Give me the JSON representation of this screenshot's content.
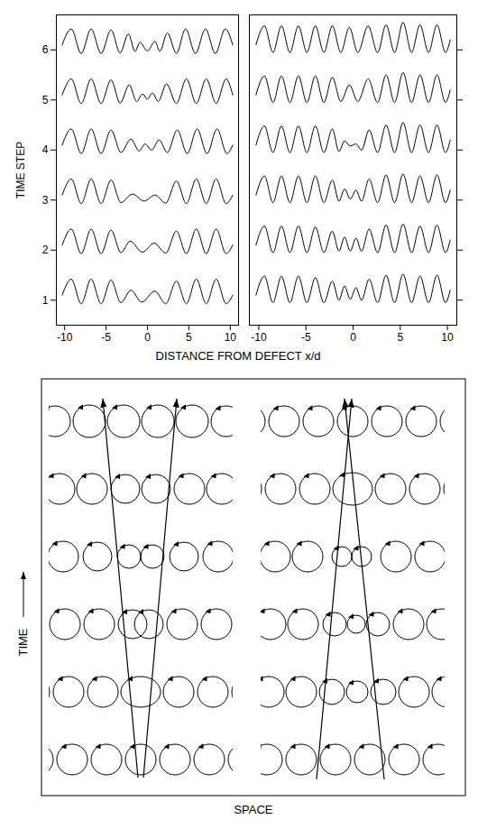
{
  "chart_data": {
    "type": "line",
    "color": "#000000",
    "xlabel": "DISTANCE FROM DEFECT x/d",
    "ylabel": "TIME STEP",
    "ylim": [
      0.5,
      6.7
    ],
    "yticks": [
      1,
      2,
      3,
      4,
      5,
      6
    ],
    "panels": [
      {
        "xlim": [
          -11,
          11
        ],
        "xticks": [
          -10,
          -5,
          0,
          5,
          10
        ],
        "series": [
          {
            "x": [
              -10.3,
              -9.2,
              -8.0,
              -6.8,
              -5.6,
              -4.4,
              -3.2,
              -2.0,
              -0.7,
              0.9,
              2.2,
              3.5,
              4.7,
              5.9,
              7.1,
              8.3,
              9.5,
              10.3
            ],
            "values": [
              1.1,
              1.42,
              0.93,
              1.42,
              0.93,
              1.4,
              0.95,
              1.2,
              0.96,
              1.18,
              0.93,
              1.38,
              0.93,
              1.42,
              0.93,
              1.42,
              0.93,
              1.1
            ]
          },
          {
            "x": [
              -10.3,
              -9.2,
              -8.0,
              -6.8,
              -5.6,
              -4.4,
              -3.2,
              -2.1,
              -0.6,
              0.8,
              2.2,
              3.5,
              4.7,
              5.9,
              7.1,
              8.3,
              9.5,
              10.3
            ],
            "values": [
              2.1,
              2.42,
              1.93,
              2.42,
              1.93,
              2.4,
              1.95,
              2.18,
              1.96,
              2.14,
              1.94,
              2.38,
              1.93,
              2.42,
              1.93,
              2.42,
              1.93,
              2.1
            ]
          },
          {
            "x": [
              -10.3,
              -9.2,
              -8.0,
              -6.8,
              -5.6,
              -4.4,
              -3.2,
              -1.8,
              -0.4,
              0.9,
              2.2,
              3.5,
              4.7,
              5.9,
              7.1,
              8.3,
              9.5,
              10.3
            ],
            "values": [
              3.1,
              3.42,
              2.93,
              3.42,
              2.93,
              3.4,
              2.95,
              3.12,
              2.98,
              3.1,
              2.94,
              3.38,
              2.93,
              3.42,
              2.93,
              3.42,
              2.93,
              3.1
            ]
          },
          {
            "x": [
              -10.3,
              -9.2,
              -8.0,
              -6.8,
              -5.6,
              -4.4,
              -3.2,
              -2.0,
              -1.0,
              -0.3,
              0.5,
              1.4,
              2.4,
              3.6,
              4.8,
              6.0,
              7.2,
              8.4,
              9.6,
              10.3
            ],
            "values": [
              4.1,
              4.42,
              3.93,
              4.42,
              3.93,
              4.4,
              3.95,
              4.22,
              3.98,
              4.12,
              4.0,
              4.2,
              3.95,
              4.4,
              3.93,
              4.42,
              3.93,
              4.42,
              3.93,
              4.1
            ]
          },
          {
            "x": [
              -10.3,
              -9.2,
              -8.0,
              -6.8,
              -5.6,
              -4.4,
              -3.3,
              -2.2,
              -1.3,
              -0.6,
              0,
              0.6,
              1.3,
              2.3,
              3.5,
              4.7,
              5.9,
              7.1,
              8.3,
              9.5,
              10.3
            ],
            "values": [
              5.1,
              5.42,
              4.93,
              5.42,
              4.93,
              5.4,
              4.94,
              5.3,
              4.97,
              5.12,
              5.02,
              5.14,
              4.97,
              5.32,
              4.93,
              5.42,
              4.93,
              5.42,
              4.93,
              5.42,
              5.1
            ]
          },
          {
            "x": [
              -10.3,
              -9.2,
              -8.0,
              -6.8,
              -5.6,
              -4.4,
              -3.3,
              -2.3,
              -1.5,
              -0.9,
              0,
              0.9,
              1.5,
              2.4,
              3.5,
              4.6,
              5.8,
              7.0,
              8.2,
              9.4,
              10.3
            ],
            "values": [
              6.1,
              6.42,
              5.93,
              6.42,
              5.93,
              6.4,
              5.94,
              6.32,
              5.97,
              6.15,
              5.98,
              6.17,
              5.97,
              6.34,
              5.93,
              6.42,
              5.93,
              6.42,
              5.93,
              6.42,
              6.1
            ]
          }
        ]
      },
      {
        "xlim": [
          -11,
          11
        ],
        "xticks": [
          -10,
          -5,
          0,
          5,
          10
        ],
        "series": [
          {
            "x": [
              -10.3,
              -9.4,
              -8.5,
              -7.6,
              -6.7,
              -5.8,
              -4.9,
              -4.0,
              -3.1,
              -2.2,
              -1.5,
              -0.9,
              -0.3,
              0.3,
              0.9,
              1.7,
              2.6,
              3.5,
              4.4,
              5.3,
              6.2,
              7.1,
              8.0,
              8.9,
              9.8,
              10.3
            ],
            "values": [
              1.1,
              1.48,
              0.95,
              1.48,
              0.95,
              1.48,
              0.95,
              1.45,
              0.95,
              1.38,
              1.0,
              1.28,
              1.02,
              1.25,
              1.0,
              1.42,
              0.95,
              1.5,
              0.95,
              1.52,
              0.95,
              1.48,
              0.95,
              1.5,
              0.95,
              1.2
            ]
          },
          {
            "x": [
              -10.3,
              -9.4,
              -8.5,
              -7.6,
              -6.7,
              -5.8,
              -4.9,
              -4.0,
              -3.1,
              -2.2,
              -1.5,
              -0.9,
              -0.3,
              0.3,
              0.9,
              1.7,
              2.6,
              3.5,
              4.4,
              5.3,
              6.2,
              7.1,
              8.0,
              8.9,
              9.8,
              10.3
            ],
            "values": [
              2.1,
              2.48,
              1.95,
              2.48,
              1.95,
              2.48,
              1.95,
              2.46,
              1.95,
              2.38,
              1.98,
              2.26,
              1.98,
              2.24,
              1.98,
              2.42,
              1.95,
              2.5,
              1.95,
              2.52,
              1.95,
              2.48,
              1.95,
              2.5,
              1.95,
              2.2
            ]
          },
          {
            "x": [
              -10.3,
              -9.4,
              -8.5,
              -7.6,
              -6.7,
              -5.8,
              -4.9,
              -4.0,
              -3.1,
              -2.2,
              -1.5,
              -0.9,
              -0.3,
              0.3,
              0.9,
              1.7,
              2.6,
              3.5,
              4.4,
              5.3,
              6.2,
              7.1,
              8.0,
              8.9,
              9.8,
              10.3
            ],
            "values": [
              3.1,
              3.48,
              2.95,
              3.48,
              2.95,
              3.48,
              2.95,
              3.48,
              2.95,
              3.4,
              2.98,
              3.22,
              3.02,
              3.2,
              2.98,
              3.42,
              2.95,
              3.5,
              2.95,
              3.52,
              2.95,
              3.48,
              2.95,
              3.5,
              2.95,
              3.2
            ]
          },
          {
            "x": [
              -10.3,
              -9.4,
              -8.5,
              -7.6,
              -6.7,
              -5.8,
              -4.9,
              -4.0,
              -3.1,
              -2.2,
              -1.5,
              -0.9,
              -0.3,
              0.3,
              0.9,
              1.7,
              2.6,
              3.5,
              4.4,
              5.3,
              6.2,
              7.1,
              8.0,
              8.9,
              9.8,
              10.3
            ],
            "values": [
              4.1,
              4.48,
              3.95,
              4.48,
              3.95,
              4.48,
              3.95,
              4.48,
              3.95,
              4.42,
              3.97,
              4.18,
              4.08,
              4.12,
              4.0,
              4.4,
              3.95,
              4.5,
              3.95,
              4.55,
              3.95,
              4.5,
              3.95,
              4.5,
              3.95,
              4.2
            ]
          },
          {
            "x": [
              -10.3,
              -9.4,
              -8.5,
              -7.6,
              -6.7,
              -5.8,
              -4.9,
              -4.0,
              -3.1,
              -2.2,
              -1.3,
              -0.4,
              0.5,
              1.6,
              2.6,
              3.5,
              4.4,
              5.3,
              6.2,
              7.1,
              8.0,
              8.9,
              9.8,
              10.3
            ],
            "values": [
              5.1,
              5.48,
              4.95,
              5.48,
              4.95,
              5.48,
              4.95,
              5.48,
              4.95,
              5.45,
              4.97,
              5.3,
              4.97,
              5.42,
              4.95,
              5.5,
              4.95,
              5.55,
              4.95,
              5.5,
              4.95,
              5.5,
              4.95,
              5.2
            ]
          },
          {
            "x": [
              -10.3,
              -9.4,
              -8.5,
              -7.6,
              -6.7,
              -5.8,
              -4.9,
              -4.0,
              -3.1,
              -2.2,
              -1.3,
              -0.4,
              0.5,
              1.6,
              2.6,
              3.5,
              4.4,
              5.3,
              6.2,
              7.1,
              8.0,
              8.9,
              9.8,
              10.3
            ],
            "values": [
              6.1,
              6.48,
              5.95,
              6.48,
              5.95,
              6.48,
              5.95,
              6.48,
              5.95,
              6.48,
              5.95,
              6.45,
              5.95,
              6.48,
              5.95,
              6.5,
              5.95,
              6.55,
              5.95,
              6.5,
              5.95,
              6.5,
              5.95,
              6.2
            ]
          }
        ]
      }
    ]
  },
  "diagram": {
    "vertical_label": "TIME",
    "horizontal_label": "SPACE"
  }
}
